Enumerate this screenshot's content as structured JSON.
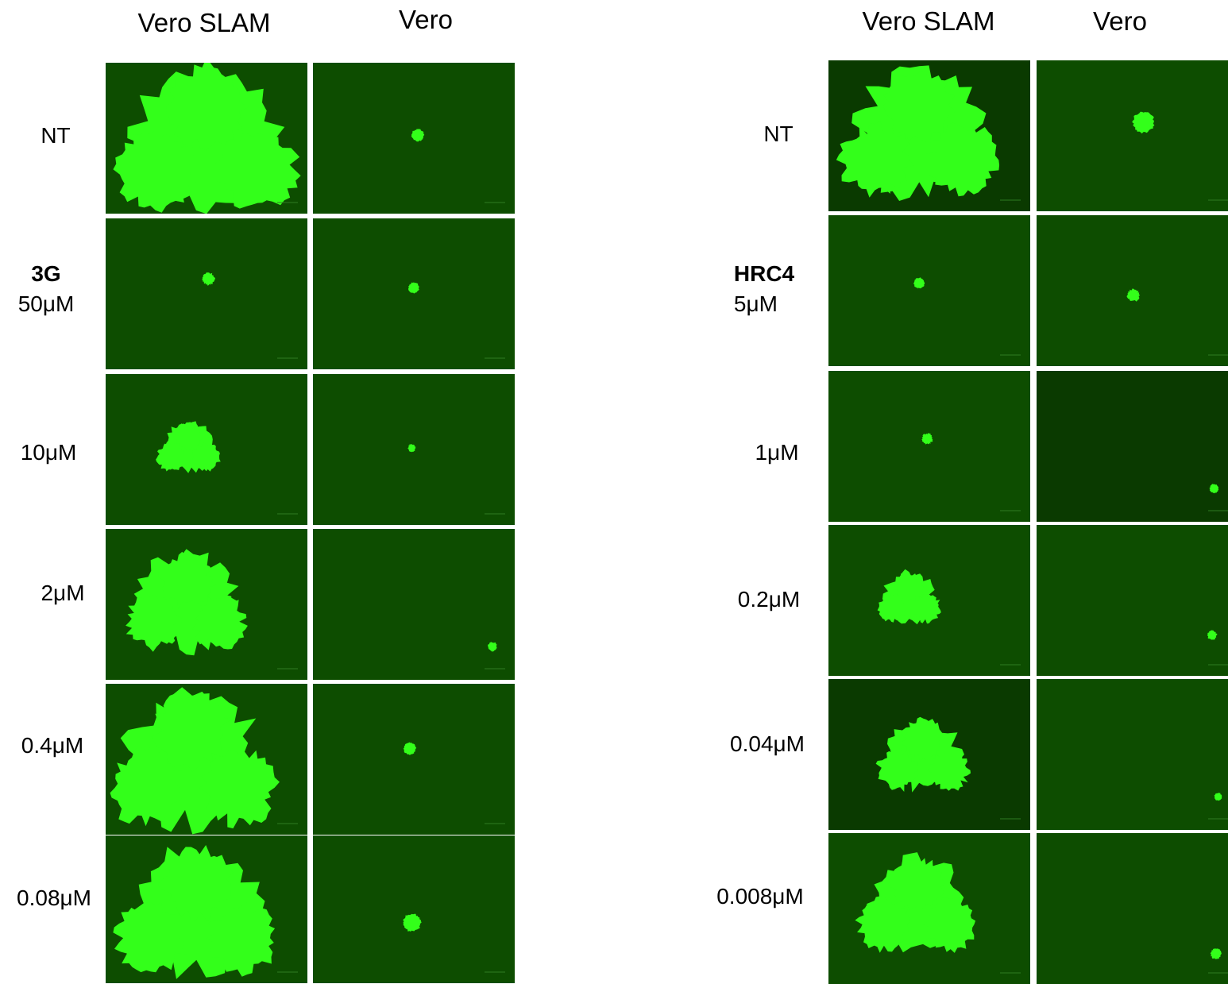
{
  "colors": {
    "background_bright": "#0d4d00",
    "background_dark": "#0a3a00",
    "plaque": "#33ff1a"
  },
  "panels": [
    {
      "compound": "3G",
      "columns": [
        "Vero SLAM",
        "Vero"
      ],
      "rows": [
        {
          "label": "NT"
        },
        {
          "compound": "3G",
          "concentration": "50μM"
        },
        {
          "label": "10μM"
        },
        {
          "label": "2μM"
        },
        {
          "label": "0.4μM"
        },
        {
          "label": "0.08μM"
        }
      ]
    },
    {
      "compound": "HRC4",
      "columns": [
        "Vero SLAM",
        "Vero"
      ],
      "rows": [
        {
          "label": "NT"
        },
        {
          "compound": "HRC4",
          "concentration": "5μM"
        },
        {
          "label": "1μM"
        },
        {
          "label": "0.2μM"
        },
        {
          "label": "0.04μM"
        },
        {
          "label": "0.008μM"
        }
      ]
    }
  ]
}
